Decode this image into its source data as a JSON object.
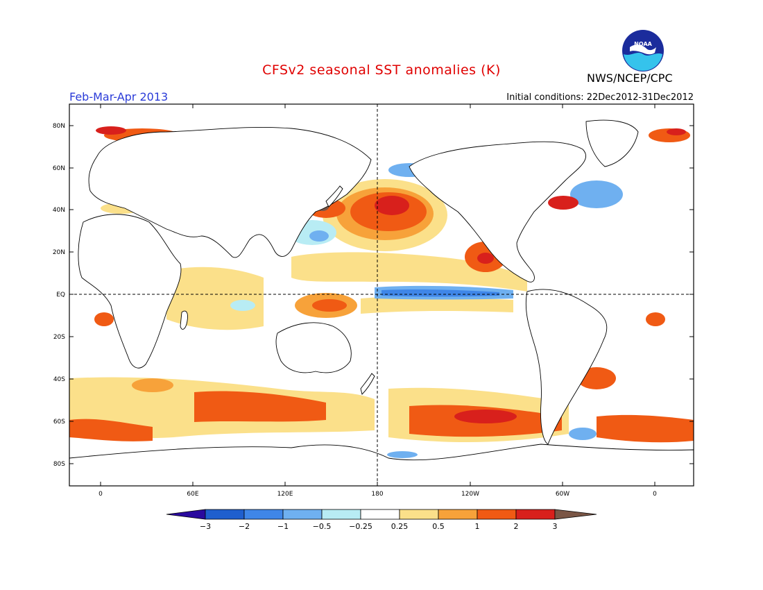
{
  "header": {
    "title": "CFSv2 seasonal SST anomalies (K)",
    "agency": "NWS/NCEP/CPC",
    "season": "Feb-Mar-Apr 2013",
    "initial_conditions": "Initial conditions: 22Dec2012-31Dec2012",
    "logo_text": "NOAA"
  },
  "colors": {
    "title": "#e00000",
    "season": "#2a3bd8",
    "land_outline": "#000000",
    "neg3": "#2a0a9e",
    "neg2": "#1f5fce",
    "neg1": "#3f86e8",
    "neg05": "#6fb0f0",
    "neg025": "#b8ecf4",
    "zero": "#ffffff",
    "pos025": "#fbe08a",
    "pos05": "#f7a23a",
    "pos1": "#f05a14",
    "pos2": "#d8201c",
    "pos3": "#a00808",
    "pos_over": "#7a5646"
  },
  "map": {
    "lat_labels": [
      "80N",
      "60N",
      "40N",
      "20N",
      "EQ",
      "20S",
      "40S",
      "60S",
      "80S"
    ],
    "lon_labels": [
      "0",
      "60E",
      "120E",
      "180",
      "120W",
      "60W",
      "0"
    ]
  },
  "colorbar": {
    "labels": [
      "−3",
      "−2",
      "−1",
      "−0.5",
      "−0.25",
      "0.25",
      "0.5",
      "1",
      "2",
      "3"
    ]
  }
}
